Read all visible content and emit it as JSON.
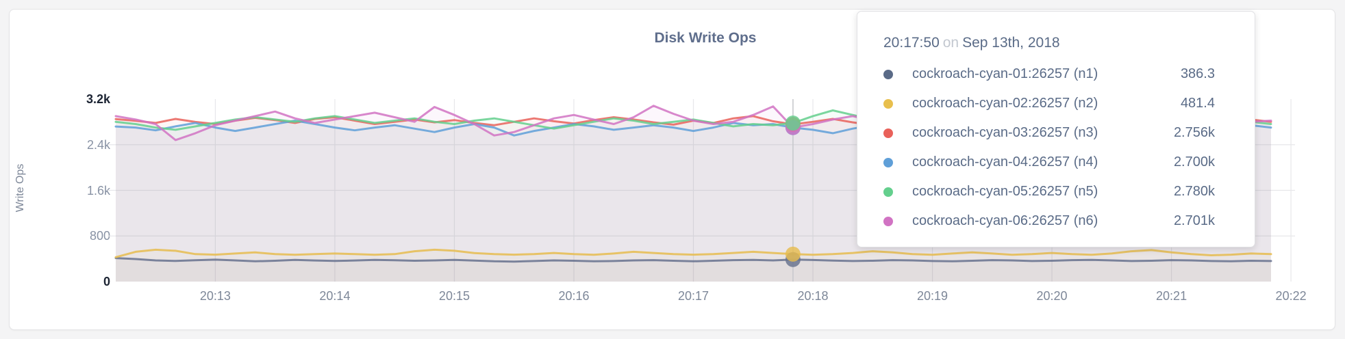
{
  "panel": {
    "title": "Disk Write Ops"
  },
  "axes": {
    "y_label": "Write Ops",
    "y_max": 3200,
    "y_ticks": [
      {
        "label": "3.2k",
        "value": 3200,
        "emphasis": true
      },
      {
        "label": "2.4k",
        "value": 2400,
        "emphasis": false
      },
      {
        "label": "1.6k",
        "value": 1600,
        "emphasis": false
      },
      {
        "label": "800",
        "value": 800,
        "emphasis": false
      },
      {
        "label": "0",
        "value": 0,
        "emphasis": true
      }
    ],
    "x_ticks": [
      "20:13",
      "20:14",
      "20:15",
      "20:16",
      "20:17",
      "20:18",
      "20:19",
      "20:20",
      "20:21",
      "20:22"
    ]
  },
  "colors": {
    "grid": "#e7e7ea",
    "hover_line": "#c8c9cd",
    "title": "#5f6e8c",
    "tick_text": "#7d8798",
    "tooltip_text": "#5a6b87"
  },
  "hover": {
    "index": 34,
    "time": "20:17:50"
  },
  "tooltip": {
    "time": "20:17:50",
    "on_word": "on",
    "date": "Sep 13th, 2018",
    "rows": [
      {
        "name": "cockroach-cyan-01:26257 (n1)",
        "value": "386.3",
        "color": "#5a6a87"
      },
      {
        "name": "cockroach-cyan-02:26257 (n2)",
        "value": "481.4",
        "color": "#e8bf4d"
      },
      {
        "name": "cockroach-cyan-03:26257 (n3)",
        "value": "2.756k",
        "color": "#e9615a"
      },
      {
        "name": "cockroach-cyan-04:26257 (n4)",
        "value": "2.700k",
        "color": "#5f9fd8"
      },
      {
        "name": "cockroach-cyan-05:26257 (n5)",
        "value": "2.780k",
        "color": "#64cf8d"
      },
      {
        "name": "cockroach-cyan-06:26257 (n6)",
        "value": "2.701k",
        "color": "#d173c3"
      }
    ]
  },
  "chart_data": {
    "type": "line",
    "title": "Disk Write Ops",
    "xlabel": "",
    "ylabel": "Write Ops",
    "ylim": [
      0,
      3200
    ],
    "grid": true,
    "legend_position": "none",
    "x_start": "20:12:10",
    "x_end": "20:21:50",
    "x_interval_seconds": 10,
    "x_tick_labels": [
      "20:13",
      "20:14",
      "20:15",
      "20:16",
      "20:17",
      "20:18",
      "20:19",
      "20:20",
      "20:21",
      "20:22"
    ],
    "hover_point": {
      "time": "20:17:50",
      "date": "Sep 13th, 2018",
      "index": 34
    },
    "series": [
      {
        "name": "cockroach-cyan-01:26257 (n1)",
        "color": "#66718e",
        "values": [
          412,
          395,
          372,
          362,
          375,
          385,
          372,
          356,
          366,
          380,
          370,
          362,
          370,
          380,
          374,
          366,
          371,
          380,
          369,
          356,
          351,
          361,
          371,
          366,
          356,
          361,
          371,
          376,
          366,
          356,
          366,
          376,
          381,
          371,
          386.3,
          379,
          369,
          361,
          366,
          376,
          371,
          361,
          356,
          366,
          376,
          371,
          361,
          366,
          376,
          381,
          371,
          361,
          366,
          376,
          371,
          361,
          356,
          366,
          361
        ]
      },
      {
        "name": "cockroach-cyan-02:26257 (n2)",
        "color": "#e6bc4f",
        "values": [
          428,
          522,
          558,
          540,
          482,
          472,
          492,
          512,
          482,
          470,
          482,
          492,
          482,
          470,
          482,
          532,
          558,
          540,
          500,
          482,
          472,
          482,
          502,
          482,
          470,
          492,
          522,
          502,
          482,
          472,
          482,
          502,
          522,
          502,
          481.4,
          470,
          482,
          502,
          532,
          512,
          482,
          470,
          492,
          512,
          492,
          470,
          482,
          502,
          482,
          470,
          492,
          532,
          552,
          512,
          482,
          462,
          472,
          492,
          482
        ]
      },
      {
        "name": "cockroach-cyan-03:26257 (n3)",
        "color": "#e9615a",
        "values": [
          2850,
          2820,
          2782,
          2852,
          2800,
          2762,
          2822,
          2872,
          2832,
          2782,
          2852,
          2882,
          2822,
          2762,
          2802,
          2842,
          2792,
          2832,
          2782,
          2742,
          2802,
          2862,
          2812,
          2772,
          2832,
          2882,
          2842,
          2792,
          2752,
          2822,
          2782,
          2862,
          2902,
          2812,
          2756,
          2802,
          2852,
          2792,
          2742,
          2802,
          2862,
          2822,
          2772,
          2812,
          2872,
          2832,
          2782,
          2822,
          2782,
          2852,
          2802,
          2762,
          2812,
          2862,
          2802,
          2752,
          2802,
          2842,
          2802
        ]
      },
      {
        "name": "cockroach-cyan-04:26257 (n4)",
        "color": "#5f9fd8",
        "values": [
          2720,
          2702,
          2652,
          2722,
          2782,
          2702,
          2642,
          2702,
          2762,
          2822,
          2762,
          2702,
          2652,
          2702,
          2742,
          2682,
          2622,
          2702,
          2762,
          2702,
          2562,
          2642,
          2702,
          2762,
          2722,
          2662,
          2702,
          2742,
          2702,
          2642,
          2702,
          2782,
          2742,
          2762,
          2700,
          2662,
          2602,
          2682,
          2742,
          2802,
          2742,
          2682,
          2722,
          2762,
          2702,
          2652,
          2702,
          2752,
          2702,
          2662,
          2702,
          2762,
          2802,
          2742,
          2702,
          2652,
          2702,
          2742,
          2702
        ]
      },
      {
        "name": "cockroach-cyan-05:26257 (n5)",
        "color": "#64cf8d",
        "values": [
          2802,
          2762,
          2702,
          2662,
          2722,
          2782,
          2842,
          2882,
          2842,
          2802,
          2862,
          2902,
          2842,
          2782,
          2822,
          2862,
          2802,
          2762,
          2822,
          2862,
          2802,
          2742,
          2682,
          2742,
          2802,
          2862,
          2822,
          2762,
          2802,
          2842,
          2782,
          2722,
          2762,
          2742,
          2780,
          2902,
          3002,
          2922,
          2842,
          2782,
          2822,
          2862,
          2802,
          2762,
          2802,
          2842,
          2802,
          2742,
          2782,
          2822,
          2862,
          2802,
          2762,
          2802,
          2842,
          2882,
          2842,
          2802,
          2762
        ]
      },
      {
        "name": "cockroach-cyan-06:26257 (n6)",
        "color": "#d173c3",
        "values": [
          2902,
          2842,
          2762,
          2482,
          2602,
          2742,
          2822,
          2902,
          2982,
          2862,
          2782,
          2842,
          2902,
          2962,
          2882,
          2802,
          3062,
          2922,
          2762,
          2562,
          2622,
          2742,
          2862,
          2922,
          2842,
          2762,
          2882,
          3082,
          2942,
          2822,
          2762,
          2802,
          2922,
          3072,
          2701,
          2762,
          2842,
          2902,
          2822,
          2762,
          2822,
          2882,
          2822,
          2762,
          2802,
          2862,
          2922,
          2862,
          2802,
          2842,
          2902,
          2842,
          2782,
          2822,
          2882,
          2922,
          2862,
          2802,
          2822
        ]
      }
    ]
  }
}
